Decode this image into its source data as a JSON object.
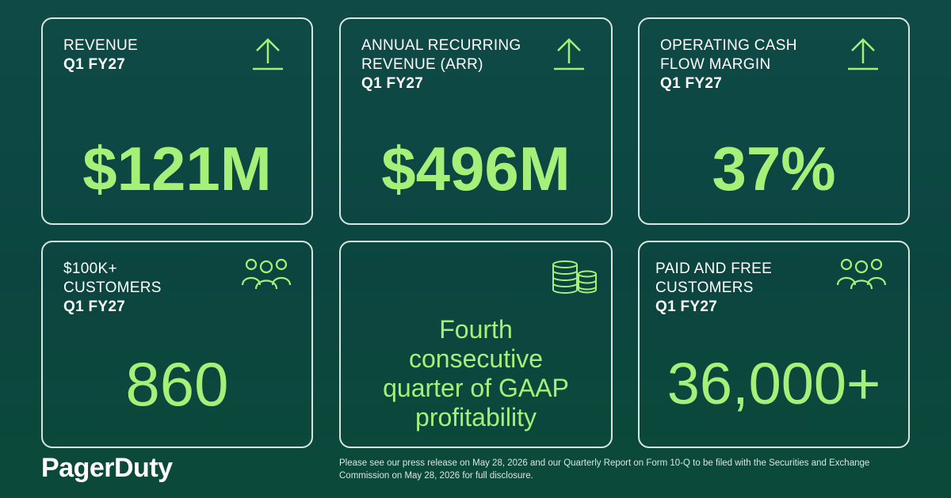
{
  "cards": [
    {
      "label_line1": "REVENUE",
      "label_line2": "",
      "sub": "Q1 FY27",
      "value": "$121M",
      "icon": "arrow-up-icon"
    },
    {
      "label_line1": "ANNUAL RECURRING",
      "label_line2": "REVENUE (ARR)",
      "sub": "Q1 FY27",
      "value": "$496M",
      "icon": "arrow-up-icon"
    },
    {
      "label_line1": "OPERATING CASH",
      "label_line2": "FLOW MARGIN",
      "sub": "Q1 FY27",
      "value": "37%",
      "icon": "arrow-up-icon"
    },
    {
      "label_line1": "$100K+",
      "label_line2": "CUSTOMERS",
      "sub": "Q1 FY27",
      "value": "860",
      "icon": "people-group-icon"
    },
    {
      "line1": "Fourth",
      "line2": "consecutive",
      "line3": "quarter of GAAP",
      "line4": "profitability",
      "icon": "coin-stacks-icon"
    },
    {
      "label_line1": "PAID AND FREE",
      "label_line2": "CUSTOMERS",
      "sub": "Q1 FY27",
      "value": "36,000+",
      "icon": "people-group-icon"
    }
  ],
  "brand": {
    "logo_text": "PagerDuty"
  },
  "footer": {
    "disclaimer": "Please see our press release on May 28, 2026 and our Quarterly Report on Form 10-Q to be filed with the Securities and Exchange Commission on May 28, 2026 for full disclosure."
  },
  "colors": {
    "accent": "#a6f07a",
    "background": "#0f4a47",
    "border": "#d7e6df"
  }
}
